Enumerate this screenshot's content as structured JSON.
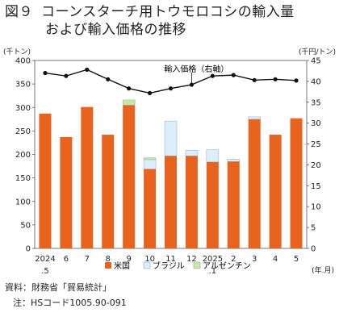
{
  "figure": {
    "number": "図９",
    "title_line1": "コーンスターチ用トウモロコシの輸入量",
    "title_line2": "および輸入価格の推移"
  },
  "chart_data": {
    "type": "bar",
    "stacked": true,
    "categories": [
      "2024\n.5",
      "6",
      "7",
      "8",
      "9",
      "10",
      "11",
      "12",
      "2025\n.1",
      "2",
      "3",
      "4",
      "5"
    ],
    "x_unit_label": "(年.月)",
    "y_left_label": "(千トン)",
    "y_right_label": "(千円/トン)",
    "ylim_left": [
      0,
      400
    ],
    "ylim_right": [
      0,
      45
    ],
    "yticks_left": [
      0,
      50,
      100,
      150,
      200,
      250,
      300,
      350,
      400
    ],
    "yticks_right": [
      0,
      5,
      10,
      15,
      20,
      25,
      30,
      35,
      40,
      45
    ],
    "grid": false,
    "legend_position": "bottom",
    "series": [
      {
        "name": "米国",
        "color": "#E8641E",
        "values": [
          287,
          237,
          301,
          242,
          305,
          169,
          197,
          197,
          184,
          185,
          275,
          242,
          277
        ]
      },
      {
        "name": "ブラジル",
        "color": "#DCEEF9",
        "values": [
          0,
          0,
          0,
          0,
          0,
          20,
          74,
          12,
          26,
          5,
          5,
          0,
          0
        ]
      },
      {
        "name": "アルゼンチン",
        "color": "#C8E6A6",
        "values": [
          0,
          0,
          0,
          0,
          11,
          4,
          0,
          0,
          0,
          0,
          0,
          0,
          0
        ]
      }
    ],
    "line_series": {
      "name": "輸入価格（右軸）",
      "axis": "right",
      "values": [
        42.0,
        41.3,
        42.8,
        40.5,
        38.3,
        37.2,
        38.3,
        39.2,
        41.3,
        41.5,
        40.3,
        40.5,
        40.2
      ]
    }
  },
  "source": {
    "line1": "資料：財務省「貿易統計」",
    "line2": "注：HSコード1005.90-091"
  }
}
